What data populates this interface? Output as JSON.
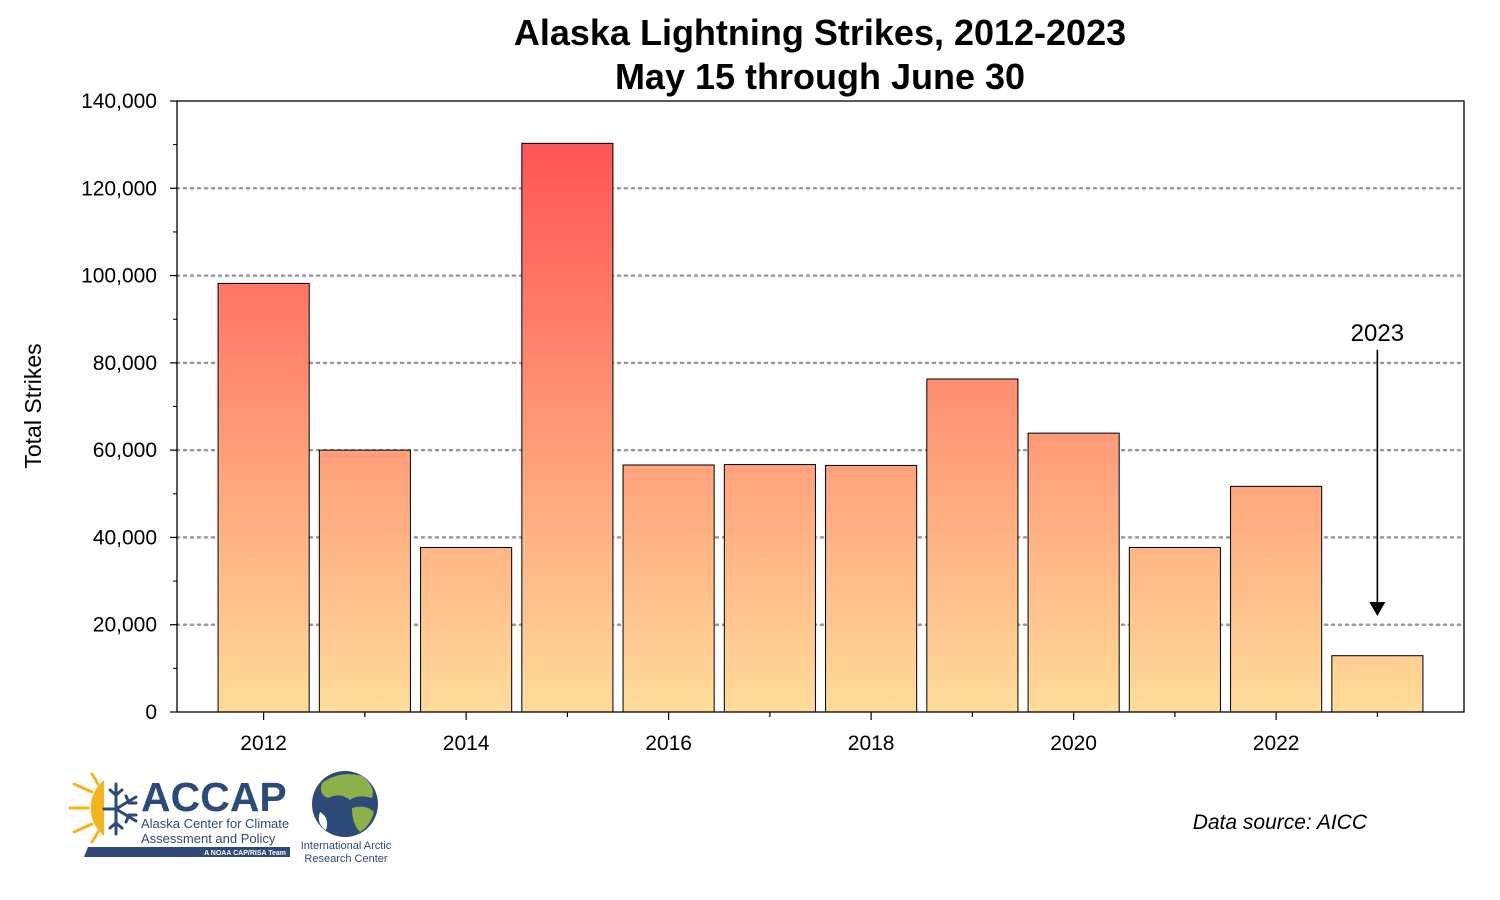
{
  "chart_data": {
    "type": "bar",
    "title": "Alaska Lightning Strikes, 2012-2023",
    "subtitle": "May 15 through June 30",
    "xlabel": "",
    "ylabel": "Total Strikes",
    "categories": [
      2012,
      2013,
      2014,
      2015,
      2016,
      2017,
      2018,
      2019,
      2020,
      2021,
      2022,
      2023
    ],
    "values": [
      98200,
      60000,
      37700,
      130300,
      56600,
      56700,
      56500,
      76300,
      63900,
      37700,
      51700,
      12900
    ],
    "ylim": [
      0,
      140000
    ],
    "yticks": [
      0,
      20000,
      40000,
      60000,
      80000,
      100000,
      120000,
      140000
    ],
    "ytick_labels": [
      "0",
      "20,000",
      "40,000",
      "60,000",
      "80,000",
      "100,000",
      "120,000",
      "140,000"
    ],
    "xtick_labels": [
      "2012",
      "2014",
      "2016",
      "2018",
      "2020",
      "2022"
    ],
    "grid": true,
    "colors": {
      "bar_top": "#ff4a4f",
      "bar_bottom": "#ffdc99",
      "bar_edge": "#000000",
      "grid": "#999999"
    },
    "annotation": {
      "text": "2023",
      "points_to": 2023,
      "arrow_from_value": 83000,
      "arrow_to_value": 22000
    }
  },
  "footer": {
    "data_source": "Data source: AICC",
    "accap_logo": {
      "name": "ACCAP",
      "line1": "Alaska Center for Climate",
      "line2": "Assessment and Policy",
      "tagline": "A NOAA CAP/RISA Team",
      "icon": "sun-snowflake-icon"
    },
    "iarc_logo": {
      "line1": "International Arctic",
      "line2": "Research Center",
      "icon": "globe-icon"
    }
  }
}
